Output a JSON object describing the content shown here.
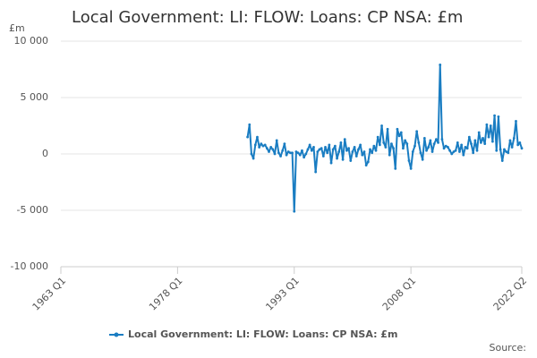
{
  "chart_data": {
    "type": "line",
    "title": "Local Government: LI: FLOW: Loans: CP NSA: £m",
    "y_unit": "£m",
    "source": "Source:",
    "xlim": [
      "1963 Q1",
      "2022 Q2"
    ],
    "xticks": [
      "1963 Q1",
      "1978 Q1",
      "1993 Q1",
      "2008 Q1",
      "2022 Q2"
    ],
    "ylim": [
      -10000,
      10000
    ],
    "yticks": [
      {
        "value": -10000,
        "label": "-10 000"
      },
      {
        "value": -5000,
        "label": "-5 000"
      },
      0,
      {
        "value": 5000,
        "label": "5 000"
      },
      {
        "value": 10000,
        "label": "10 000"
      }
    ],
    "grid": true,
    "legend": "bottom",
    "x_start": "1987 Q1",
    "series": [
      {
        "name": "Local Government: LI: FLOW: Loans: CP NSA: £m",
        "color": "#1a7dc2",
        "values": [
          1500,
          2600,
          0,
          -400,
          800,
          1500,
          600,
          900,
          700,
          800,
          500,
          200,
          600,
          400,
          0,
          1200,
          100,
          -200,
          300,
          900,
          -100,
          200,
          100,
          100,
          -5100,
          200,
          100,
          -100,
          300,
          -300,
          0,
          400,
          800,
          300,
          600,
          -1600,
          200,
          400,
          500,
          -200,
          600,
          100,
          800,
          -800,
          400,
          700,
          -400,
          200,
          1000,
          -500,
          1300,
          300,
          500,
          -600,
          200,
          600,
          -200,
          400,
          800,
          -100,
          200,
          -1000,
          -700,
          400,
          100,
          700,
          300,
          1500,
          800,
          2500,
          1000,
          600,
          2200,
          -100,
          900,
          500,
          -1300,
          2200,
          1600,
          1900,
          500,
          1200,
          900,
          -600,
          -1300,
          200,
          700,
          2000,
          1000,
          100,
          -500,
          1400,
          300,
          600,
          1200,
          200,
          900,
          1300,
          1000,
          7900,
          1300,
          500,
          700,
          600,
          300,
          0,
          200,
          300,
          1000,
          200,
          800,
          -100,
          600,
          500,
          1500,
          900,
          100,
          1200,
          300,
          1900,
          1000,
          1400,
          900,
          2600,
          1500,
          2500,
          1100,
          3400,
          300,
          3300,
          400,
          -600,
          400,
          200,
          100,
          1200,
          600,
          1400,
          2900,
          800,
          1000,
          500
        ]
      }
    ]
  }
}
